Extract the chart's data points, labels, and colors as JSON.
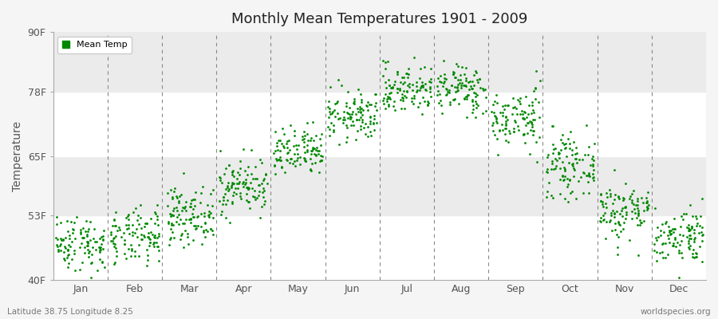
{
  "title": "Monthly Mean Temperatures 1901 - 2009",
  "ylabel": "Temperature",
  "ytick_labels": [
    "40F",
    "53F",
    "65F",
    "78F",
    "90F"
  ],
  "ytick_values": [
    40,
    53,
    65,
    78,
    90
  ],
  "ylim": [
    40,
    90
  ],
  "months": [
    "Jan",
    "Feb",
    "Mar",
    "Apr",
    "May",
    "Jun",
    "Jul",
    "Aug",
    "Sep",
    "Oct",
    "Nov",
    "Dec"
  ],
  "dot_color": "#008800",
  "background_color": "#f5f5f5",
  "band_colors": [
    "#ffffff",
    "#ebebeb",
    "#ffffff",
    "#ebebeb"
  ],
  "subtitle_left": "Latitude 38.75 Longitude 8.25",
  "subtitle_right": "worldspecies.org",
  "legend_label": "Mean Temp",
  "monthly_means": [
    47.5,
    48.5,
    53.0,
    59.0,
    65.5,
    73.0,
    78.5,
    78.5,
    72.5,
    63.0,
    54.0,
    49.0
  ],
  "monthly_stds": [
    2.8,
    2.8,
    2.8,
    2.8,
    2.5,
    2.5,
    2.5,
    2.5,
    3.0,
    3.0,
    3.0,
    2.8
  ],
  "n_years": 109,
  "start_year": 1901,
  "end_year": 2009,
  "hband_ranges": [
    [
      40,
      53
    ],
    [
      53,
      65
    ],
    [
      65,
      78
    ],
    [
      78,
      90
    ]
  ],
  "hband_colors": [
    "#ffffff",
    "#ebebeb",
    "#ffffff",
    "#ebebeb"
  ]
}
